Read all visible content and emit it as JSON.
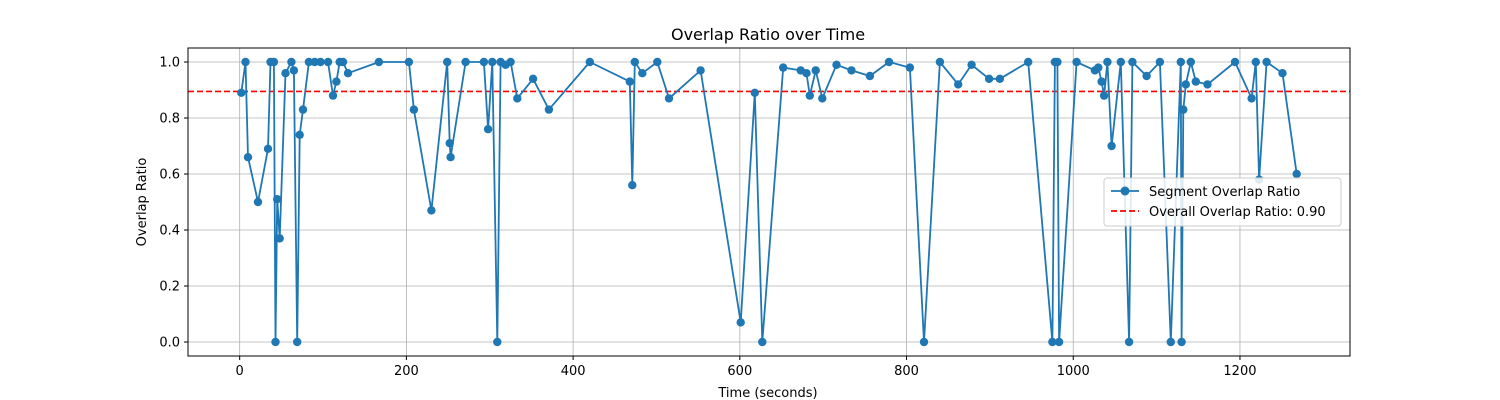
{
  "chart_data": {
    "type": "line",
    "title": "Overlap Ratio over Time",
    "xlabel": "Time (seconds)",
    "ylabel": "Overlap Ratio",
    "xlim": [
      -62,
      1332
    ],
    "ylim": [
      -0.05,
      1.05
    ],
    "xticks": [
      0,
      200,
      400,
      600,
      800,
      1000,
      1200
    ],
    "yticks": [
      0.0,
      0.2,
      0.4,
      0.6,
      0.8,
      1.0
    ],
    "xtick_labels": [
      "0",
      "200",
      "400",
      "600",
      "800",
      "1000",
      "1200"
    ],
    "ytick_labels": [
      "0.0",
      "0.2",
      "0.4",
      "0.6",
      "0.8",
      "1.0"
    ],
    "grid": true,
    "legend_position": "center-right",
    "series": [
      {
        "name": "Segment Overlap Ratio",
        "color": "#1f77b4",
        "marker": "circle",
        "x": [
          2,
          7,
          10,
          22,
          34,
          37,
          41,
          43,
          45,
          48,
          55,
          62,
          65,
          69,
          72,
          76,
          83,
          90,
          97,
          106,
          112,
          116,
          120,
          124,
          130,
          167,
          203,
          209,
          230,
          249,
          252,
          253,
          271,
          293,
          298,
          303,
          309,
          313,
          319,
          325,
          333,
          352,
          371,
          420,
          468,
          471,
          474,
          483,
          501,
          515,
          553,
          601,
          618,
          627,
          652,
          673,
          680,
          684,
          691,
          699,
          716,
          734,
          756,
          779,
          804,
          821,
          840,
          862,
          878,
          899,
          912,
          946,
          975,
          978,
          981,
          983,
          1004,
          1026,
          1030,
          1034,
          1037,
          1041,
          1046,
          1057,
          1067,
          1071,
          1088,
          1104,
          1117,
          1129,
          1130,
          1132,
          1135,
          1141,
          1147,
          1161,
          1194,
          1214,
          1219,
          1223,
          1232,
          1251,
          1268
        ],
        "y": [
          0.89,
          1.0,
          0.66,
          0.5,
          0.69,
          1.0,
          1.0,
          0.0,
          0.51,
          0.37,
          0.96,
          1.0,
          0.97,
          0.0,
          0.74,
          0.83,
          1.0,
          1.0,
          1.0,
          1.0,
          0.88,
          0.93,
          1.0,
          1.0,
          0.96,
          1.0,
          1.0,
          0.83,
          0.47,
          1.0,
          0.71,
          0.66,
          1.0,
          1.0,
          0.76,
          1.0,
          0.0,
          1.0,
          0.99,
          1.0,
          0.87,
          0.94,
          0.83,
          1.0,
          0.93,
          0.56,
          1.0,
          0.96,
          1.0,
          0.87,
          0.97,
          0.07,
          0.89,
          0.0,
          0.98,
          0.97,
          0.96,
          0.88,
          0.97,
          0.87,
          0.99,
          0.97,
          0.95,
          1.0,
          0.98,
          0.0,
          1.0,
          0.92,
          0.99,
          0.94,
          0.94,
          1.0,
          0.0,
          1.0,
          1.0,
          0.0,
          1.0,
          0.97,
          0.98,
          0.93,
          0.88,
          1.0,
          0.7,
          1.0,
          0.0,
          1.0,
          0.95,
          1.0,
          0.0,
          1.0,
          0.0,
          0.83,
          0.92,
          1.0,
          0.93,
          0.92,
          1.0,
          0.87,
          1.0,
          0.58,
          1.0,
          0.96,
          0.6
        ]
      }
    ],
    "reference_line": {
      "name": "Overall Overlap Ratio: 0.90",
      "value": 0.895,
      "color": "#ff0000",
      "style": "dashed"
    }
  }
}
